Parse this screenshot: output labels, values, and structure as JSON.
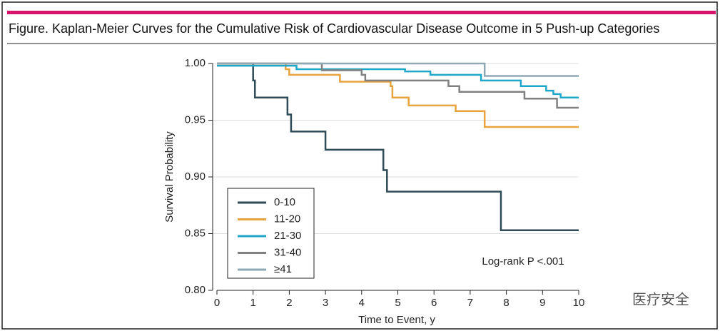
{
  "chart_data": {
    "type": "step",
    "title": "Figure. Kaplan-Meier Curves for the Cumulative Risk of Cardiovascular Disease Outcome in 5 Push-up Categories",
    "xlabel": "Time to Event, y",
    "ylabel": "Survival Probability",
    "annotation": "Log-rank P <.001",
    "watermark": "医疗安全",
    "xlim": [
      0,
      10
    ],
    "xticks": [
      0,
      1,
      2,
      3,
      4,
      5,
      6,
      7,
      8,
      9,
      10
    ],
    "ylim": [
      0.8,
      1.0
    ],
    "yticks": [
      {
        "value": 0.8,
        "label": "0.80"
      },
      {
        "value": 0.85,
        "label": "0.85"
      },
      {
        "value": 0.9,
        "label": "0.90"
      },
      {
        "value": 0.95,
        "label": "0.95"
      },
      {
        "value": 1.0,
        "label": "1.00"
      }
    ],
    "grid": true,
    "legend": "lower left",
    "series": [
      {
        "name": "0-10",
        "color": "#2f4b57",
        "x": [
          0,
          1,
          1.05,
          1.95,
          2.05,
          3,
          4.6,
          4.7,
          7.85,
          10
        ],
        "values": [
          1.0,
          0.985,
          0.97,
          0.955,
          0.94,
          0.924,
          0.906,
          0.887,
          0.853,
          0.853
        ]
      },
      {
        "name": "11-20",
        "color": "#e8a33d",
        "x": [
          0,
          1.9,
          2.0,
          3.4,
          4.8,
          4.85,
          5.3,
          6.6,
          7.4,
          10
        ],
        "values": [
          1.0,
          0.995,
          0.99,
          0.984,
          0.98,
          0.97,
          0.963,
          0.958,
          0.944,
          0.944
        ]
      },
      {
        "name": "21-30",
        "color": "#1ea7c9",
        "x": [
          0,
          2.2,
          5.2,
          5.9,
          7.3,
          8.4,
          9.1,
          9.3,
          9.5,
          10
        ],
        "values": [
          0.998,
          0.995,
          0.993,
          0.99,
          0.985,
          0.98,
          0.976,
          0.973,
          0.97,
          0.97
        ]
      },
      {
        "name": "31-40",
        "color": "#808080",
        "x": [
          0,
          2.9,
          4.0,
          4.1,
          6.4,
          6.7,
          8.5,
          9.4,
          10
        ],
        "values": [
          1.0,
          0.994,
          0.99,
          0.985,
          0.98,
          0.975,
          0.969,
          0.961,
          0.961
        ]
      },
      {
        "name": "≥41",
        "color": "#8fa8b5",
        "x": [
          0,
          7.4,
          10
        ],
        "values": [
          1.0,
          0.989,
          0.989
        ]
      }
    ]
  }
}
